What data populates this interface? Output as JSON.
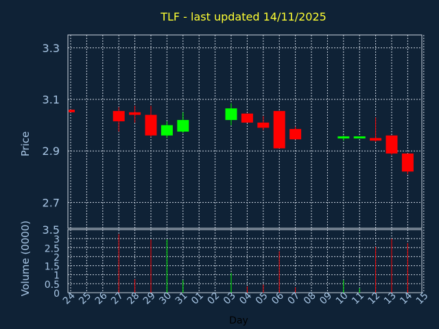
{
  "chart_data": {
    "title": "TLF - last updated 14/11/2025",
    "colors": {
      "background": "#0f2236",
      "grid": "#cfd8e3",
      "text": "#a9c7e6",
      "title": "#ffff33",
      "up": "#00ff00",
      "down": "#ff0000"
    },
    "grid": true,
    "x_tick_labels": [
      "24",
      "25",
      "26",
      "27",
      "28",
      "29",
      "30",
      "31",
      "01",
      "02",
      "03",
      "04",
      "05",
      "06",
      "07",
      "08",
      "09",
      "10",
      "11",
      "12",
      "13",
      "14",
      "15"
    ],
    "xlabel": "Day",
    "price_panel": {
      "type": "candlestick",
      "ylabel": "Price",
      "ylim": [
        2.6,
        3.35
      ],
      "yticks": [
        2.7,
        2.9,
        3.1,
        3.3
      ],
      "ytick_labels": [
        "2.7",
        "2.9",
        "3.1",
        "3.3"
      ],
      "candles": [
        {
          "x": 0,
          "open": 3.06,
          "high": 3.06,
          "low": 3.05,
          "close": 3.05
        },
        {
          "x": 3,
          "open": 3.055,
          "high": 3.07,
          "low": 2.975,
          "close": 3.015
        },
        {
          "x": 4,
          "open": 3.05,
          "high": 3.075,
          "low": 3.01,
          "close": 3.04
        },
        {
          "x": 5,
          "open": 3.04,
          "high": 3.075,
          "low": 2.955,
          "close": 2.96
        },
        {
          "x": 6,
          "open": 2.96,
          "high": 3.015,
          "low": 2.95,
          "close": 3.0
        },
        {
          "x": 7,
          "open": 2.975,
          "high": 3.05,
          "low": 2.97,
          "close": 3.02
        },
        {
          "x": 10,
          "open": 3.02,
          "high": 3.085,
          "low": 3.0,
          "close": 3.065
        },
        {
          "x": 11,
          "open": 3.045,
          "high": 3.045,
          "low": 3.01,
          "close": 3.01
        },
        {
          "x": 12,
          "open": 3.01,
          "high": 3.035,
          "low": 2.98,
          "close": 2.99
        },
        {
          "x": 13,
          "open": 3.055,
          "high": 3.055,
          "low": 2.91,
          "close": 2.91
        },
        {
          "x": 14,
          "open": 2.985,
          "high": 2.995,
          "low": 2.945,
          "close": 2.945
        },
        {
          "x": 17,
          "open": 2.95,
          "high": 2.96,
          "low": 2.94,
          "close": 2.955
        },
        {
          "x": 18,
          "open": 2.95,
          "high": 2.955,
          "low": 2.95,
          "close": 2.955
        },
        {
          "x": 19,
          "open": 2.95,
          "high": 3.03,
          "low": 2.935,
          "close": 2.94
        },
        {
          "x": 20,
          "open": 2.96,
          "high": 2.96,
          "low": 2.885,
          "close": 2.89
        },
        {
          "x": 21,
          "open": 2.89,
          "high": 2.89,
          "low": 2.81,
          "close": 2.82
        }
      ]
    },
    "volume_panel": {
      "type": "bar",
      "ylabel": "Volume (0000)",
      "ylim": [
        0,
        3.5
      ],
      "yticks": [
        0,
        0.5,
        1,
        1.5,
        2,
        2.5,
        3,
        3.5
      ],
      "ytick_labels": [
        "0",
        "0.5",
        "1",
        "1.5",
        "2",
        "2.5",
        "3",
        "3.5"
      ],
      "bars": [
        {
          "x": 3,
          "value": 3.25,
          "direction": "down"
        },
        {
          "x": 4,
          "value": 0.75,
          "direction": "down"
        },
        {
          "x": 5,
          "value": 2.95,
          "direction": "down"
        },
        {
          "x": 6,
          "value": 2.95,
          "direction": "up"
        },
        {
          "x": 7,
          "value": 0.7,
          "direction": "up"
        },
        {
          "x": 10,
          "value": 1.1,
          "direction": "up"
        },
        {
          "x": 11,
          "value": 0.35,
          "direction": "down"
        },
        {
          "x": 12,
          "value": 0.45,
          "direction": "down"
        },
        {
          "x": 13,
          "value": 2.3,
          "direction": "down"
        },
        {
          "x": 14,
          "value": 0.3,
          "direction": "down"
        },
        {
          "x": 17,
          "value": 0.7,
          "direction": "up"
        },
        {
          "x": 18,
          "value": 0.25,
          "direction": "up"
        },
        {
          "x": 19,
          "value": 2.55,
          "direction": "down"
        },
        {
          "x": 20,
          "value": 3.0,
          "direction": "down"
        },
        {
          "x": 21,
          "value": 2.75,
          "direction": "down"
        }
      ]
    }
  }
}
